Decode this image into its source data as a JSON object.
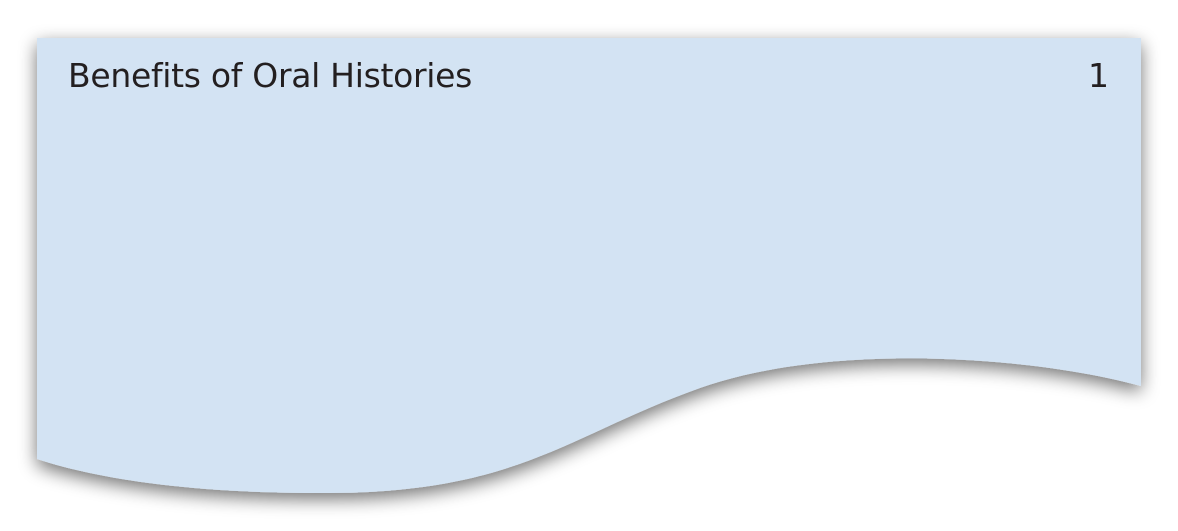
{
  "card": {
    "title": "Benefits of Oral Histories",
    "number": "1"
  },
  "colors": {
    "card_fill": "#d3e3f3",
    "text": "#231f20",
    "shadow": "#000000"
  }
}
